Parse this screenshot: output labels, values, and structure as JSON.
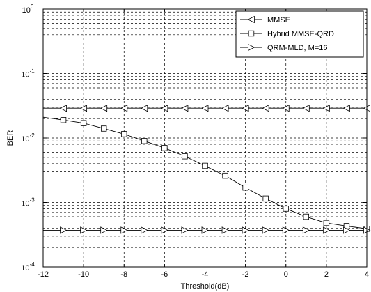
{
  "chart_data": {
    "type": "line",
    "title": "",
    "xlabel": "Threshold(dB)",
    "ylabel": "BER",
    "xlim": [
      -12,
      4
    ],
    "ylim": [
      0.0001,
      1
    ],
    "y_scale": "log",
    "grid": true,
    "legend_position": "top-right",
    "x_ticks": [
      -12,
      -10,
      -8,
      -6,
      -4,
      -2,
      0,
      2,
      4
    ],
    "x_tick_labels": [
      "-12",
      "-10",
      "-8",
      "-6",
      "-4",
      "-2",
      "0",
      "2",
      "4"
    ],
    "y_tick_labels": [
      {
        "base": "10",
        "exp": "0"
      },
      {
        "base": "10",
        "exp": "-1"
      },
      {
        "base": "10",
        "exp": "-2"
      },
      {
        "base": "10",
        "exp": "-3"
      },
      {
        "base": "10",
        "exp": "-4"
      }
    ],
    "x": [
      -12,
      -11,
      -10,
      -9,
      -8,
      -7,
      -6,
      -5,
      -4,
      -3,
      -2,
      -1,
      0,
      1,
      2,
      3,
      4
    ],
    "series": [
      {
        "name": "MMSE",
        "marker": "triangle-left",
        "color": "#000000",
        "values": [
          0.029,
          0.029,
          0.029,
          0.029,
          0.029,
          0.029,
          0.029,
          0.029,
          0.029,
          0.029,
          0.029,
          0.029,
          0.029,
          0.029,
          0.029,
          0.029,
          0.029
        ]
      },
      {
        "name": "Hybrid MMSE-QRD",
        "marker": "square",
        "color": "#000000",
        "values": [
          0.021,
          0.019,
          0.017,
          0.014,
          0.0115,
          0.009,
          0.007,
          0.0052,
          0.0037,
          0.0026,
          0.0017,
          0.00115,
          0.0008,
          0.0006,
          0.00048,
          0.00043,
          0.00039
        ]
      },
      {
        "name": "QRM-MLD, M=16",
        "marker": "triangle-right",
        "color": "#000000",
        "values": [
          0.00037,
          0.00037,
          0.00037,
          0.00037,
          0.00037,
          0.00037,
          0.00037,
          0.00037,
          0.00037,
          0.00037,
          0.00037,
          0.00037,
          0.00037,
          0.00037,
          0.00037,
          0.00037,
          0.00037
        ]
      }
    ]
  }
}
